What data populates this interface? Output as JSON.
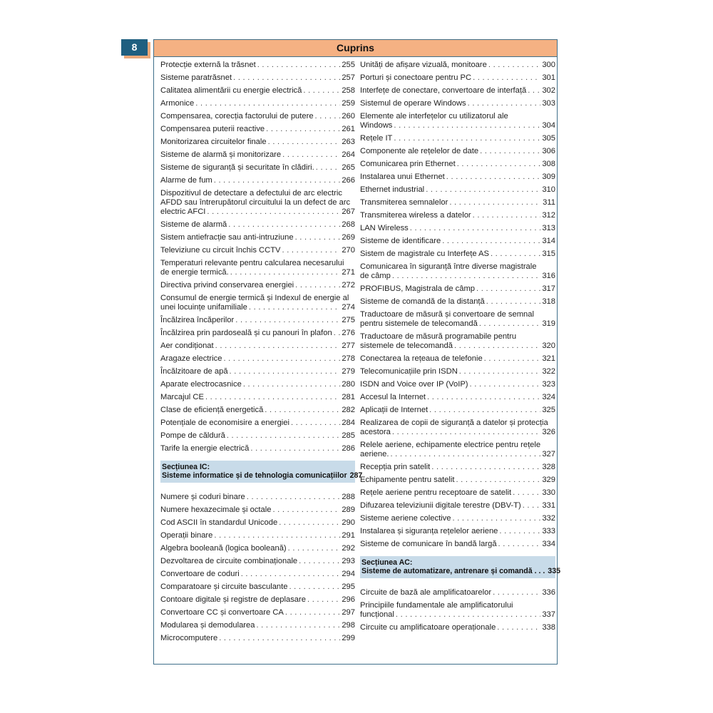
{
  "page_number": "8",
  "title": "Cuprins",
  "colors": {
    "header": "#f5b183",
    "page_badge": "#1f5f80",
    "section_bg": "#c8dbe9",
    "frame": "#3f6f8a"
  },
  "columns": [
    [
      {
        "type": "entry",
        "lines": [
          "Protecție externă la trăsnet"
        ],
        "page": "255"
      },
      {
        "type": "entry",
        "lines": [
          "Sisteme paratrăsnet"
        ],
        "page": "257"
      },
      {
        "type": "entry",
        "lines": [
          "Calitatea alimentării cu energie electrică"
        ],
        "page": "258"
      },
      {
        "type": "entry",
        "lines": [
          "Armonice"
        ],
        "page": "259"
      },
      {
        "type": "entry",
        "lines": [
          "Compensarea, corecția factorului de putere"
        ],
        "page": "260"
      },
      {
        "type": "entry",
        "lines": [
          "Compensarea puterii reactive"
        ],
        "page": "261"
      },
      {
        "type": "entry",
        "lines": [
          "Monitorizarea circuitelor finale"
        ],
        "page": "263"
      },
      {
        "type": "entry",
        "lines": [
          "Sisteme de alarmă și monitorizare"
        ],
        "page": "264"
      },
      {
        "type": "entry",
        "lines": [
          "Sisteme de siguranță și securitate în clădiri."
        ],
        "page": "265"
      },
      {
        "type": "entry",
        "lines": [
          "Alarme de fum"
        ],
        "page": "266"
      },
      {
        "type": "entry",
        "lines": [
          "Dispozitivul de detectare a defectului de arc electric",
          "AFDD sau întrerupătorul circuitului la un defect de arc",
          "electric AFCI"
        ],
        "page": "267"
      },
      {
        "type": "entry",
        "lines": [
          "Sisteme de alarmă"
        ],
        "page": "268"
      },
      {
        "type": "entry",
        "lines": [
          "Sistem antiefracție sau anti-intruziune"
        ],
        "page": "269"
      },
      {
        "type": "entry",
        "lines": [
          "Televiziune cu circuit închis CCTV"
        ],
        "page": "270"
      },
      {
        "type": "entry",
        "lines": [
          "Temperaturi relevante pentru calcularea necesarului",
          "de energie termică."
        ],
        "page": "271"
      },
      {
        "type": "entry",
        "lines": [
          "Directiva privind conservarea energiei"
        ],
        "page": "272"
      },
      {
        "type": "entry",
        "lines": [
          "Consumul de energie termică și Indexul de energie al",
          "unei locuințe unifamiliale"
        ],
        "page": "274"
      },
      {
        "type": "entry",
        "lines": [
          "Încălzirea încăperilor"
        ],
        "page": "275"
      },
      {
        "type": "entry",
        "lines": [
          "Încălzirea prin pardoseală și cu panouri în plafon"
        ],
        "page": "276"
      },
      {
        "type": "entry",
        "lines": [
          "Aer condiționat"
        ],
        "page": "277"
      },
      {
        "type": "entry",
        "lines": [
          "Aragaze electrice"
        ],
        "page": "278"
      },
      {
        "type": "entry",
        "lines": [
          "Încălzitoare de apă"
        ],
        "page": "279"
      },
      {
        "type": "entry",
        "lines": [
          "Aparate electrocasnice"
        ],
        "page": "280"
      },
      {
        "type": "entry",
        "lines": [
          "Marcajul CE"
        ],
        "page": "281"
      },
      {
        "type": "entry",
        "lines": [
          "Clase de eficiență energetică"
        ],
        "page": "282"
      },
      {
        "type": "entry",
        "lines": [
          "Potențiale de economisire a energiei"
        ],
        "page": "284"
      },
      {
        "type": "entry",
        "lines": [
          "Pompe de căldură"
        ],
        "page": "285"
      },
      {
        "type": "entry",
        "lines": [
          "Tarife la energie electrică"
        ],
        "page": "286"
      },
      {
        "type": "section",
        "lines": [
          "Secțiunea IC:",
          "Sisteme informatice și de tehnologia comunicațiilor"
        ],
        "page": "287"
      },
      {
        "type": "entry",
        "lines": [
          "Numere și coduri binare"
        ],
        "page": "288"
      },
      {
        "type": "entry",
        "lines": [
          "Numere hexazecimale și octale"
        ],
        "page": "289"
      },
      {
        "type": "entry",
        "lines": [
          "Cod ASCII în standardul Unicode"
        ],
        "page": "290"
      },
      {
        "type": "entry",
        "lines": [
          "Operații binare"
        ],
        "page": "291"
      },
      {
        "type": "entry",
        "lines": [
          "Algebra booleană (logica booleană)"
        ],
        "page": "292"
      },
      {
        "type": "entry",
        "lines": [
          "Dezvoltarea de circuite combinaționale"
        ],
        "page": "293"
      },
      {
        "type": "entry",
        "lines": [
          "Convertoare de coduri"
        ],
        "page": "294"
      },
      {
        "type": "entry",
        "lines": [
          "Comparatoare și circuite basculante"
        ],
        "page": "295"
      },
      {
        "type": "entry",
        "lines": [
          "Contoare digitale și registre de deplasare"
        ],
        "page": "296"
      },
      {
        "type": "entry",
        "lines": [
          "Convertoare CC și convertoare CA"
        ],
        "page": "297"
      },
      {
        "type": "entry",
        "lines": [
          "Modularea și demodularea"
        ],
        "page": "298"
      },
      {
        "type": "entry",
        "lines": [
          "Microcomputere"
        ],
        "page": "299"
      }
    ],
    [
      {
        "type": "entry",
        "lines": [
          "Unități de afișare vizuală, monitoare"
        ],
        "page": "300"
      },
      {
        "type": "entry",
        "lines": [
          "Porturi și conectoare pentru PC"
        ],
        "page": "301"
      },
      {
        "type": "entry",
        "lines": [
          "Interfețe de conectare, convertoare de interfață"
        ],
        "page": "302"
      },
      {
        "type": "entry",
        "lines": [
          "Sistemul de operare Windows"
        ],
        "page": "303"
      },
      {
        "type": "entry",
        "lines": [
          "Elemente ale interfețelor cu utilizatorul ale",
          "Windows"
        ],
        "page": "304"
      },
      {
        "type": "entry",
        "lines": [
          "Rețele IT"
        ],
        "page": "305"
      },
      {
        "type": "entry",
        "lines": [
          "Componente ale rețelelor de date"
        ],
        "page": "306"
      },
      {
        "type": "entry",
        "lines": [
          "Comunicarea prin Ethernet"
        ],
        "page": "308"
      },
      {
        "type": "entry",
        "lines": [
          "Instalarea unui Ethernet"
        ],
        "page": "309"
      },
      {
        "type": "entry",
        "lines": [
          "Ethernet industrial"
        ],
        "page": "310"
      },
      {
        "type": "entry",
        "lines": [
          "Transmiterea semnalelor"
        ],
        "page": "311"
      },
      {
        "type": "entry",
        "lines": [
          "Transmiterea wireless a datelor"
        ],
        "page": "312"
      },
      {
        "type": "entry",
        "lines": [
          "LAN Wireless"
        ],
        "page": "313"
      },
      {
        "type": "entry",
        "lines": [
          "Sisteme de identificare"
        ],
        "page": "314"
      },
      {
        "type": "entry",
        "lines": [
          "Sistem de magistrale cu Interfețe AS"
        ],
        "page": "315"
      },
      {
        "type": "entry",
        "lines": [
          "Comunicarea în siguranță între diverse magistrale",
          "de câmp"
        ],
        "page": "316"
      },
      {
        "type": "entry",
        "lines": [
          "PROFIBUS, Magistrala de câmp"
        ],
        "page": "317"
      },
      {
        "type": "entry",
        "lines": [
          "Sisteme de comandă de la distanță"
        ],
        "page": "318"
      },
      {
        "type": "entry",
        "lines": [
          "Traductoare de măsură și convertoare de semnal",
          "pentru sistemele de telecomandă"
        ],
        "page": "319"
      },
      {
        "type": "entry",
        "lines": [
          "Traductoare de măsură programabile pentru",
          "sistemele de telecomandă"
        ],
        "page": "320"
      },
      {
        "type": "entry",
        "lines": [
          "Conectarea la rețeaua de telefonie"
        ],
        "page": "321"
      },
      {
        "type": "entry",
        "lines": [
          "Telecomunicațiile prin ISDN"
        ],
        "page": "322"
      },
      {
        "type": "entry",
        "lines": [
          "ISDN and Voice over IP (VoIP)"
        ],
        "page": "323"
      },
      {
        "type": "entry",
        "lines": [
          "Accesul la Internet"
        ],
        "page": "324"
      },
      {
        "type": "entry",
        "lines": [
          "Aplicații de Internet"
        ],
        "page": "325"
      },
      {
        "type": "entry",
        "lines": [
          "Realizarea de copii de siguranță a datelor și protecția",
          "acestora"
        ],
        "page": "326"
      },
      {
        "type": "entry",
        "lines": [
          "Relele aeriene, echipamente electrice pentru rețele",
          "aeriene."
        ],
        "page": "327"
      },
      {
        "type": "entry",
        "lines": [
          "Recepția prin satelit"
        ],
        "page": "328"
      },
      {
        "type": "entry",
        "lines": [
          "Echipamente pentru satelit"
        ],
        "page": "329"
      },
      {
        "type": "entry",
        "lines": [
          "Rețele aeriene pentru receptoare de satelit"
        ],
        "page": "330"
      },
      {
        "type": "entry",
        "lines": [
          "Difuzarea televiziunii digitale terestre (DBV-T)"
        ],
        "page": "331"
      },
      {
        "type": "entry",
        "lines": [
          "Sisteme aeriene colective"
        ],
        "page": "332"
      },
      {
        "type": "entry",
        "lines": [
          "Instalarea și siguranța rețelelor aeriene"
        ],
        "page": "333"
      },
      {
        "type": "entry",
        "lines": [
          "Sisteme de comunicare în bandă largă"
        ],
        "page": "334"
      },
      {
        "type": "section",
        "lines": [
          "Secțiunea AC:",
          "Sisteme de automatizare, antrenare și comandă . . ."
        ],
        "page": "335"
      },
      {
        "type": "entry",
        "lines": [
          "Circuite de bază ale amplificatoarelor"
        ],
        "page": "336"
      },
      {
        "type": "entry",
        "lines": [
          "Principiile fundamentale ale amplificatorului",
          "funcțional"
        ],
        "page": "337"
      },
      {
        "type": "entry",
        "lines": [
          "Circuite cu amplificatoare operaționale"
        ],
        "page": "338"
      }
    ]
  ]
}
